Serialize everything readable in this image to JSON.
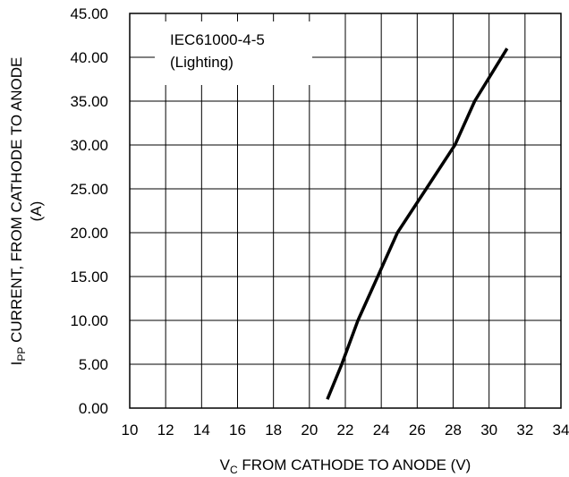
{
  "chart_data": {
    "type": "line",
    "xlabel": {
      "main": "V",
      "sub": "C",
      "rest": " FROM CATHODE TO ANODE (V)"
    },
    "ylabel": {
      "main": "I",
      "sub": "PP",
      "rest": " CURRENT, FROM CATHODE TO ANODE",
      "line2": "(A)"
    },
    "xlim": [
      10,
      34
    ],
    "ylim": [
      0,
      45
    ],
    "xticks": [
      10,
      12,
      14,
      16,
      18,
      20,
      22,
      24,
      26,
      28,
      30,
      32,
      34
    ],
    "yticks": [
      "0.00",
      "5.00",
      "10.00",
      "15.00",
      "20.00",
      "25.00",
      "30.00",
      "35.00",
      "40.00",
      "45.00"
    ],
    "grid": true,
    "legend": {
      "line1": "IEC61000-4-5",
      "line2": "(Lighting)",
      "placement": "top-left"
    },
    "series": [
      {
        "x": [
          21.0,
          21.8,
          22.7,
          23.8,
          24.9,
          26.5,
          28.1,
          29.2,
          31.0
        ],
        "y": [
          1.0,
          5.0,
          10.0,
          15.0,
          20.0,
          25.0,
          30.0,
          35.0,
          41.0
        ],
        "color": "#000000"
      }
    ]
  }
}
